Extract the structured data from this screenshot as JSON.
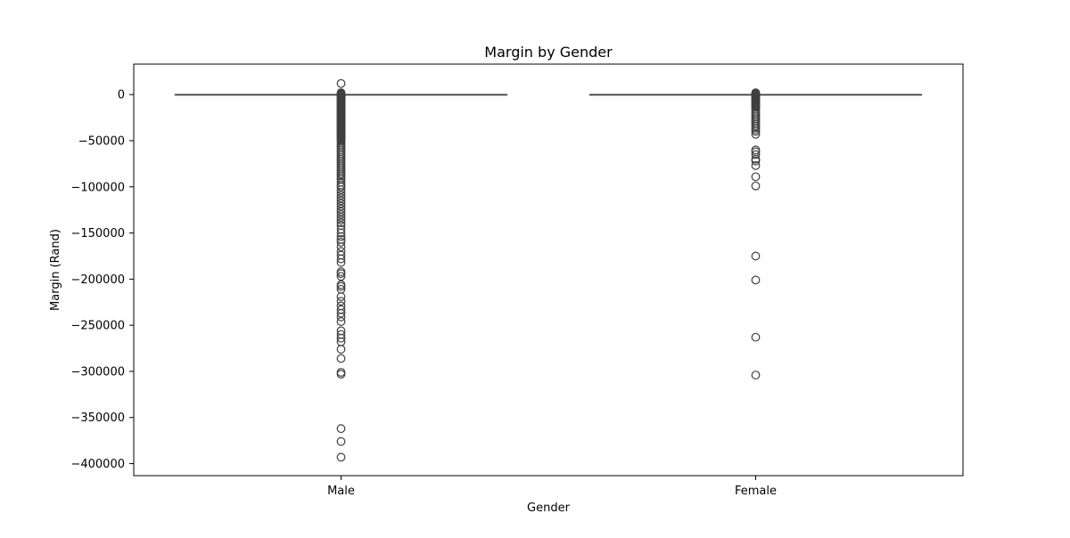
{
  "chart_data": {
    "type": "box",
    "title": "Margin by Gender",
    "xlabel": "Gender",
    "ylabel": "Margin (Rand)",
    "ylim": [
      -413000,
      33000
    ],
    "yticks": [
      0,
      -50000,
      -100000,
      -150000,
      -200000,
      -250000,
      -300000,
      -350000,
      -400000
    ],
    "ytick_labels": [
      "0",
      "−50000",
      "−100000",
      "−150000",
      "−200000",
      "−250000",
      "−300000",
      "−350000",
      "−400000"
    ],
    "categories": [
      "Male",
      "Female"
    ],
    "grid": false,
    "colors": {
      "box_line": "#3f3f3f",
      "axes": "#000000",
      "text": "#000000"
    },
    "boxes": [
      {
        "category": "Male",
        "whisker_low": 0,
        "q1": 0,
        "median": 0,
        "q3": 0,
        "whisker_high": 0,
        "outliers": [
          12000,
          2000,
          1000,
          500,
          -500,
          -1000,
          -2000,
          -3000,
          -4000,
          -5000,
          -6000,
          -7000,
          -8000,
          -9000,
          -10000,
          -11000,
          -12000,
          -13000,
          -14000,
          -15000,
          -16000,
          -17000,
          -18000,
          -19000,
          -20000,
          -21000,
          -22000,
          -23000,
          -24000,
          -25000,
          -26000,
          -27000,
          -28000,
          -29000,
          -30000,
          -31000,
          -32000,
          -33000,
          -34000,
          -35000,
          -36000,
          -37000,
          -38000,
          -39000,
          -40000,
          -41000,
          -42000,
          -43000,
          -44000,
          -45000,
          -46000,
          -47000,
          -48000,
          -49000,
          -50000,
          -52000,
          -54000,
          -56000,
          -58000,
          -60000,
          -62000,
          -64000,
          -66000,
          -68000,
          -70000,
          -72000,
          -74000,
          -76000,
          -78000,
          -80000,
          -82000,
          -84000,
          -86000,
          -88000,
          -90000,
          -92000,
          -95000,
          -98000,
          -100000,
          -103000,
          -106000,
          -109000,
          -112000,
          -115000,
          -118000,
          -121000,
          -124000,
          -127000,
          -130000,
          -133000,
          -136000,
          -139000,
          -142000,
          -146000,
          -150000,
          -154000,
          -157000,
          -160000,
          -165000,
          -170000,
          -174000,
          -178000,
          -182000,
          -192000,
          -194000,
          -197000,
          -206000,
          -208000,
          -211000,
          -219000,
          -224000,
          -229000,
          -233000,
          -237000,
          -241000,
          -246000,
          -256000,
          -260000,
          -264000,
          -268000,
          -276000,
          -286000,
          -301000,
          -303000,
          -362000,
          -376000,
          -393000
        ]
      },
      {
        "category": "Female",
        "whisker_low": 0,
        "q1": 0,
        "median": 0,
        "q3": 0,
        "whisker_high": 0,
        "outliers": [
          2000,
          1000,
          500,
          -500,
          -1000,
          -1500,
          -2000,
          -3000,
          -4000,
          -5000,
          -6000,
          -7000,
          -8000,
          -9000,
          -10000,
          -11000,
          -12000,
          -13000,
          -14000,
          -16000,
          -18000,
          -20000,
          -22000,
          -24000,
          -26000,
          -28000,
          -30000,
          -32000,
          -34000,
          -36000,
          -38000,
          -40000,
          -43000,
          -60000,
          -62000,
          -65000,
          -70000,
          -72000,
          -77000,
          -89000,
          -99000,
          -175000,
          -201000,
          -263000,
          -304000
        ]
      }
    ]
  }
}
